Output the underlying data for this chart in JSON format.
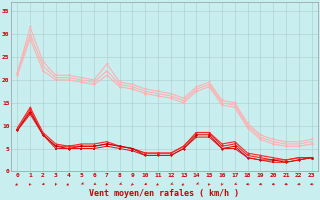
{
  "xlabel": "Vent moyen/en rafales ( km/h )",
  "background_color": "#c8eef0",
  "grid_color": "#aacccc",
  "x_ticks": [
    0,
    1,
    2,
    3,
    4,
    5,
    6,
    7,
    8,
    9,
    10,
    11,
    12,
    13,
    14,
    15,
    16,
    17,
    18,
    19,
    20,
    21,
    22,
    23
  ],
  "ylim": [
    0,
    37
  ],
  "xlim": [
    -0.5,
    23.5
  ],
  "yticks": [
    0,
    5,
    10,
    15,
    20,
    25,
    30,
    35
  ],
  "lines_light": [
    {
      "x": [
        0,
        1,
        2,
        3,
        4,
        5,
        6,
        7,
        8,
        9,
        10,
        11,
        12,
        13,
        14,
        15,
        16,
        17,
        18,
        19,
        20,
        21,
        22,
        23
      ],
      "y": [
        21.5,
        31.5,
        24,
        21,
        21,
        20.5,
        20,
        23.5,
        19.5,
        19,
        18,
        17.5,
        17,
        16,
        18.5,
        19.5,
        15.5,
        15,
        10.5,
        8,
        7,
        6.5,
        6.5,
        7
      ],
      "color": "#ffb0b0",
      "marker": "v",
      "ms": 2.0,
      "lw": 0.8
    },
    {
      "x": [
        0,
        1,
        2,
        3,
        4,
        5,
        6,
        7,
        8,
        9,
        10,
        11,
        12,
        13,
        14,
        15,
        16,
        17,
        18,
        19,
        20,
        21,
        22,
        23
      ],
      "y": [
        21.5,
        30,
        23,
        20.5,
        20.5,
        20,
        19.5,
        22,
        19,
        18.5,
        17.5,
        17,
        16.5,
        15.5,
        18,
        19,
        15,
        14.5,
        10,
        7.5,
        6.5,
        6.0,
        6.0,
        6.5
      ],
      "color": "#ffb0b0",
      "marker": "^",
      "ms": 2.0,
      "lw": 0.8
    },
    {
      "x": [
        0,
        1,
        2,
        3,
        4,
        5,
        6,
        7,
        8,
        9,
        10,
        11,
        12,
        13,
        14,
        15,
        16,
        17,
        18,
        19,
        20,
        21,
        22,
        23
      ],
      "y": [
        21,
        29,
        22,
        20,
        20,
        19.5,
        19,
        21,
        18.5,
        18,
        17,
        16.5,
        16,
        15,
        17.5,
        18.5,
        14.5,
        14,
        9.5,
        7,
        6,
        5.5,
        5.5,
        6
      ],
      "color": "#ffb0b0",
      "marker": "D",
      "ms": 1.5,
      "lw": 0.8
    }
  ],
  "lines_dark": [
    {
      "x": [
        0,
        1,
        2,
        3,
        4,
        5,
        6,
        7,
        8,
        9,
        10,
        11,
        12,
        13,
        14,
        15,
        16,
        17,
        18,
        19,
        20,
        21,
        22,
        23
      ],
      "y": [
        9.5,
        14,
        8.5,
        6,
        5.5,
        6,
        6,
        6.5,
        5.5,
        5,
        4,
        4,
        4,
        5.5,
        8.5,
        8.5,
        6,
        6.5,
        4,
        3.5,
        3,
        2.5,
        3,
        3
      ],
      "color": "#ff2222",
      "marker": "^",
      "ms": 2.0,
      "lw": 0.8
    },
    {
      "x": [
        0,
        1,
        2,
        3,
        4,
        5,
        6,
        7,
        8,
        9,
        10,
        11,
        12,
        13,
        14,
        15,
        16,
        17,
        18,
        19,
        20,
        21,
        22,
        23
      ],
      "y": [
        9,
        13.5,
        8,
        5.5,
        5.5,
        5.5,
        5.5,
        6,
        5.5,
        5,
        4,
        4,
        4,
        5.5,
        8.5,
        8.5,
        5.5,
        6,
        3.5,
        3,
        2.5,
        2.5,
        3,
        3
      ],
      "color": "#ff2222",
      "marker": "v",
      "ms": 2.0,
      "lw": 0.8
    },
    {
      "x": [
        0,
        1,
        2,
        3,
        4,
        5,
        6,
        7,
        8,
        9,
        10,
        11,
        12,
        13,
        14,
        15,
        16,
        17,
        18,
        19,
        20,
        21,
        22,
        23
      ],
      "y": [
        9,
        13,
        8,
        5.5,
        5,
        5.5,
        5.5,
        6,
        5.5,
        5,
        3.5,
        3.5,
        3.5,
        5,
        8,
        8,
        5,
        5.5,
        3,
        2.5,
        2.5,
        2,
        2.5,
        3
      ],
      "color": "#cc0000",
      "marker": "D",
      "ms": 1.5,
      "lw": 0.7
    },
    {
      "x": [
        0,
        1,
        2,
        3,
        4,
        5,
        6,
        7,
        8,
        9,
        10,
        11,
        12,
        13,
        14,
        15,
        16,
        17,
        18,
        19,
        20,
        21,
        22,
        23
      ],
      "y": [
        9,
        12.5,
        8,
        5,
        5,
        5,
        5,
        5.5,
        5,
        4.5,
        3.5,
        3.5,
        3.5,
        5,
        7.5,
        7.5,
        5,
        5,
        3,
        2.5,
        2,
        2,
        2.5,
        3
      ],
      "color": "#dd1111",
      "marker": "s",
      "ms": 1.5,
      "lw": 0.7
    }
  ],
  "wind_angles_deg": [
    210,
    200,
    240,
    190,
    210,
    215,
    230,
    200,
    220,
    195,
    240,
    205,
    220,
    210,
    215,
    200,
    190,
    225,
    270,
    260,
    270,
    270,
    260,
    270
  ],
  "ticker_fontsize": 4.5,
  "xlabel_fontsize": 6.0,
  "axis_label_color": "#cc0000"
}
